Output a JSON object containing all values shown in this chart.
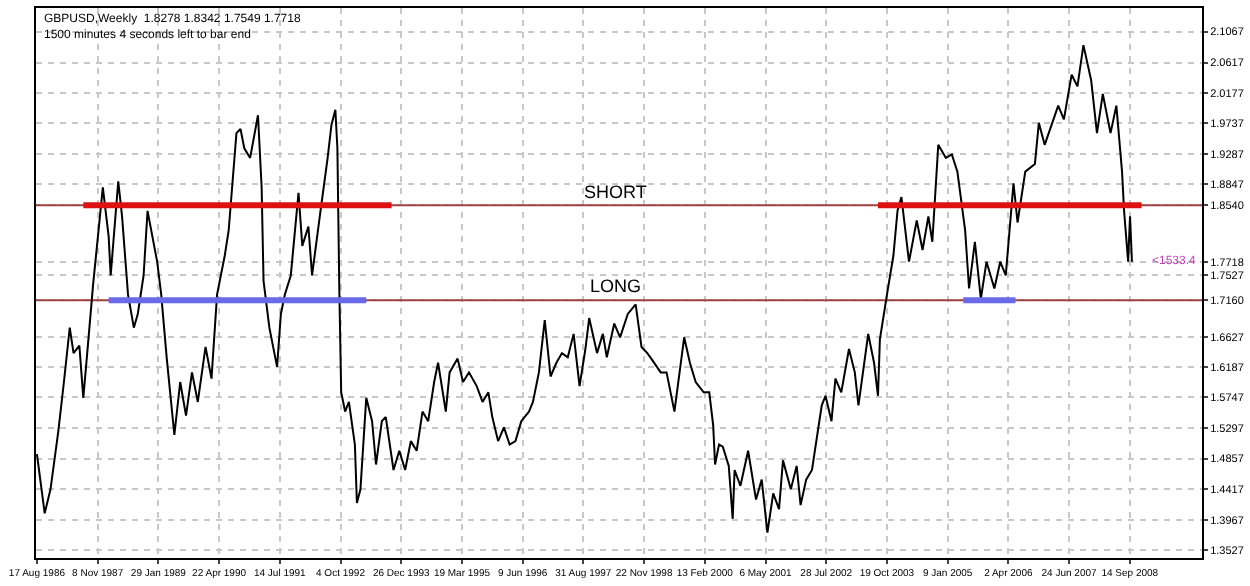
{
  "chart_data": {
    "type": "line",
    "annotations": [
      "GBPUSD,Weekly  1.8278 1.8342 1.7549 1.7718",
      "1500 minutes 4 seconds left to bar end",
      {
        "text": "<1533.4",
        "x": "2008-09-30",
        "y": 1.7718
      },
      {
        "text": "SHORT",
        "x": "1998-05-01",
        "y": 1.854
      },
      {
        "text": "LONG",
        "x": "1998-05-01",
        "y": 1.716
      }
    ],
    "xlim": [
      "1986-08-10",
      "2010-03-01"
    ],
    "xticks": [
      {
        "value": "1986-08-17",
        "label": "17 Aug 1986"
      },
      {
        "value": "1987-11-08",
        "label": "8 Nov 1987"
      },
      {
        "value": "1989-01-29",
        "label": "29 Jan 1989"
      },
      {
        "value": "1990-04-22",
        "label": "22 Apr 1990"
      },
      {
        "value": "1991-07-14",
        "label": "14 Jul 1991"
      },
      {
        "value": "1992-10-04",
        "label": "4 Oct 1992"
      },
      {
        "value": "1993-12-26",
        "label": "26 Dec 1993"
      },
      {
        "value": "1995-03-19",
        "label": "19 Mar 1995"
      },
      {
        "value": "1996-06-09",
        "label": "9 Jun 1996"
      },
      {
        "value": "1997-08-31",
        "label": "31 Aug 1997"
      },
      {
        "value": "1998-11-22",
        "label": "22 Nov 1998"
      },
      {
        "value": "2000-02-13",
        "label": "13 Feb 2000"
      },
      {
        "value": "2001-05-06",
        "label": "6 May 2001"
      },
      {
        "value": "2002-07-28",
        "label": "28 Jul 2002"
      },
      {
        "value": "2003-10-19",
        "label": "19 Oct 2003"
      },
      {
        "value": "2005-01-09",
        "label": "9 Jan 2005"
      },
      {
        "value": "2006-04-02",
        "label": "2 Apr 2006"
      },
      {
        "value": "2007-06-24",
        "label": "24 Jun 2007"
      },
      {
        "value": "2008-09-14",
        "label": "14 Sep 2008"
      }
    ],
    "ylim": [
      1.341,
      2.141
    ],
    "yticks": [
      1.3527,
      1.3967,
      1.4417,
      1.4857,
      1.5297,
      1.5747,
      1.6187,
      1.6627,
      {
        "value": 1.716,
        "label": "1.7160"
      },
      1.7527,
      {
        "value": 1.7718,
        "label": "1.7718"
      },
      {
        "value": 1.854,
        "label": "1.8540"
      },
      1.8847,
      1.9287,
      1.9737,
      2.0177,
      2.0617,
      2.1067
    ],
    "grid": true,
    "series": [
      {
        "type": "line",
        "color": "#a04040",
        "x": [
          "1986-08-10",
          "2010-03-01"
        ],
        "values": [
          1.854,
          1.854
        ]
      },
      {
        "type": "line",
        "color": "#a04040",
        "x": [
          "1986-08-10",
          "2010-03-01"
        ],
        "values": [
          1.716,
          1.716
        ]
      },
      {
        "type": "line",
        "color": "#000000",
        "x": [
          "1986-08-17",
          "1986-10-13",
          "1986-11-25",
          "1987-01-22",
          "1987-03-04",
          "1987-04-16",
          "1987-05-14",
          "1987-06-26",
          "1987-07-25",
          "1987-08-23",
          "1987-10-05",
          "1987-11-03",
          "1987-12-16",
          "1988-01-28",
          "1988-02-12",
          "1988-04-08",
          "1988-05-06",
          "1988-06-19",
          "1988-08-01",
          "1988-08-30",
          "1988-10-12",
          "1988-11-10",
          "1989-01-20",
          "1989-02-19",
          "1989-04-01",
          "1989-05-27",
          "1989-07-09",
          "1989-08-21",
          "1989-10-04",
          "1989-11-16",
          "1990-01-12",
          "1990-02-25",
          "1990-04-07",
          "1990-06-03",
          "1990-07-02",
          "1990-08-28",
          "1990-09-27",
          "1990-10-25",
          "1990-12-07",
          "1991-02-03",
          "1991-03-02",
          "1991-03-16",
          "1991-04-28",
          "1991-06-24",
          "1991-07-22",
          "1991-08-20",
          "1991-10-03",
          "1991-11-29",
          "1991-12-27",
          "1992-02-10",
          "1992-03-08",
          "1992-05-04",
          "1992-07-01",
          "1992-07-29",
          "1992-08-27",
          "1992-09-11",
          "1992-09-25",
          "1992-10-09",
          "1992-11-07",
          "1992-12-05",
          "1993-01-18",
          "1993-02-02",
          "1993-02-28",
          "1993-04-12",
          "1993-05-25",
          "1993-06-23",
          "1993-08-05",
          "1993-09-03",
          "1993-10-30",
          "1993-12-12",
          "1994-01-24",
          "1994-03-07",
          "1994-04-19",
          "1994-06-01",
          "1994-07-13",
          "1994-08-26",
          "1994-09-24",
          "1994-11-20",
          "1994-12-18",
          "1995-02-15",
          "1995-03-27",
          "1995-05-10",
          "1995-07-06",
          "1995-08-18",
          "1995-09-30",
          "1995-10-29",
          "1995-12-11",
          "1996-01-23",
          "1996-03-05",
          "1996-04-17",
          "1996-05-30",
          "1996-07-26",
          "1996-08-24",
          "1996-10-07",
          "1996-11-19",
          "1997-01-01",
          "1997-02-13",
          "1997-03-26",
          "1997-05-08",
          "1997-06-20",
          "1997-08-03",
          "1997-09-15",
          "1997-10-13",
          "1997-12-10",
          "1998-01-22",
          "1998-02-20",
          "1998-04-16",
          "1998-05-29",
          "1998-07-25",
          "1998-09-21",
          "1998-11-03",
          "1998-12-16",
          "1999-01-14",
          "1999-03-25",
          "1999-05-07",
          "1999-07-04",
          "1999-09-14",
          "1999-10-26",
          "1999-12-08",
          "2000-02-05",
          "2000-03-17",
          "2000-04-15",
          "2000-04-29",
          "2000-05-28",
          "2000-06-25",
          "2000-08-08",
          "2000-09-06",
          "2000-09-20",
          "2000-11-02",
          "2000-12-29",
          "2001-02-25",
          "2001-04-08",
          "2001-05-20",
          "2001-07-02",
          "2001-08-14",
          "2001-09-12",
          "2001-11-09",
          "2001-12-22",
          "2002-01-20",
          "2002-03-02",
          "2002-04-14",
          "2002-06-25",
          "2002-07-23",
          "2002-09-05",
          "2002-10-04",
          "2002-11-16",
          "2003-01-12",
          "2003-02-24",
          "2003-03-23",
          "2003-06-03",
          "2003-07-16",
          "2003-08-14",
          "2003-08-28",
          "2003-10-24",
          "2003-12-06",
          "2004-01-05",
          "2004-02-03",
          "2004-03-30",
          "2004-05-26",
          "2004-07-08",
          "2004-08-20",
          "2004-09-18",
          "2004-11-01",
          "2004-12-27",
          "2005-02-09",
          "2005-03-22",
          "2005-05-18",
          "2005-06-16",
          "2005-07-29",
          "2005-09-11",
          "2005-10-23",
          "2005-12-20",
          "2006-02-01",
          "2006-03-14",
          "2006-05-10",
          "2006-06-09",
          "2006-08-05",
          "2006-10-15",
          "2006-11-13",
          "2006-12-26",
          "2007-04-05",
          "2007-05-17",
          "2007-07-13",
          "2007-08-25",
          "2007-10-08",
          "2007-12-04",
          "2008-01-16",
          "2008-02-28",
          "2008-04-25",
          "2008-06-07",
          "2008-07-19",
          "2008-08-03",
          "2008-09-02",
          "2008-09-16",
          "2008-09-30"
        ],
        "values": [
          1.492,
          1.406,
          1.441,
          1.526,
          1.597,
          1.676,
          1.639,
          1.65,
          1.574,
          1.639,
          1.738,
          1.795,
          1.88,
          1.809,
          1.752,
          1.889,
          1.838,
          1.724,
          1.676,
          1.696,
          1.752,
          1.846,
          1.772,
          1.724,
          1.631,
          1.52,
          1.597,
          1.548,
          1.611,
          1.568,
          1.648,
          1.602,
          1.724,
          1.781,
          1.818,
          1.959,
          1.965,
          1.937,
          1.923,
          1.985,
          1.88,
          1.744,
          1.676,
          1.619,
          1.696,
          1.724,
          1.752,
          1.872,
          1.795,
          1.823,
          1.752,
          1.838,
          1.923,
          1.971,
          1.993,
          1.937,
          1.733,
          1.582,
          1.554,
          1.568,
          1.506,
          1.421,
          1.441,
          1.574,
          1.54,
          1.477,
          1.54,
          1.546,
          1.469,
          1.497,
          1.469,
          1.511,
          1.497,
          1.554,
          1.54,
          1.597,
          1.625,
          1.554,
          1.611,
          1.631,
          1.597,
          1.611,
          1.591,
          1.568,
          1.582,
          1.546,
          1.511,
          1.531,
          1.506,
          1.511,
          1.54,
          1.554,
          1.568,
          1.611,
          1.687,
          1.605,
          1.625,
          1.639,
          1.633,
          1.667,
          1.591,
          1.645,
          1.69,
          1.639,
          1.667,
          1.633,
          1.682,
          1.662,
          1.696,
          1.71,
          1.648,
          1.639,
          1.631,
          1.611,
          1.611,
          1.554,
          1.662,
          1.625,
          1.597,
          1.582,
          1.582,
          1.534,
          1.477,
          1.506,
          1.503,
          1.475,
          1.398,
          1.469,
          1.446,
          1.497,
          1.426,
          1.455,
          1.378,
          1.435,
          1.412,
          1.483,
          1.441,
          1.475,
          1.418,
          1.455,
          1.469,
          1.563,
          1.577,
          1.54,
          1.602,
          1.582,
          1.645,
          1.611,
          1.563,
          1.667,
          1.625,
          1.577,
          1.659,
          1.73,
          1.781,
          1.846,
          1.866,
          1.772,
          1.832,
          1.789,
          1.838,
          1.801,
          1.942,
          1.923,
          1.928,
          1.903,
          1.818,
          1.733,
          1.801,
          1.718,
          1.772,
          1.733,
          1.772,
          1.752,
          1.886,
          1.829,
          1.903,
          1.914,
          1.974,
          1.942,
          1.999,
          1.979,
          2.044,
          2.027,
          2.087,
          2.036,
          1.959,
          2.016,
          1.959,
          1.999,
          1.903,
          1.846,
          1.772,
          1.838,
          1.772
        ]
      },
      {
        "type": "line",
        "color": "#dd1111",
        "x": [
          "1987-07-25",
          "1993-10-16"
        ],
        "values": [
          1.854,
          1.854
        ]
      },
      {
        "type": "line",
        "color": "#dd1111",
        "x": [
          "2003-08-14",
          "2008-12-10"
        ],
        "values": [
          1.854,
          1.854
        ]
      },
      {
        "type": "line",
        "color": "#6a6ae8",
        "x": [
          "1988-01-28",
          "1993-04-12"
        ],
        "values": [
          1.716,
          1.716
        ]
      },
      {
        "type": "line",
        "color": "#6a6ae8",
        "x": [
          "2005-05-04",
          "2006-05-25"
        ],
        "values": [
          1.716,
          1.716
        ]
      }
    ]
  }
}
